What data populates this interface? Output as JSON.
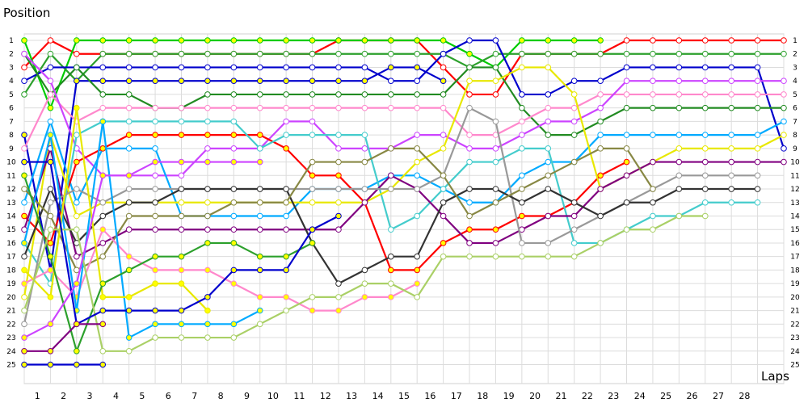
{
  "chart_data": {
    "type": "line",
    "title": "",
    "ylabel": "Position",
    "xlabel": "Laps",
    "x": [
      0,
      1,
      2,
      3,
      4,
      5,
      6,
      7,
      8,
      9,
      10,
      11,
      12,
      13,
      14,
      15,
      16,
      17,
      18,
      19,
      20,
      21,
      22,
      23,
      24,
      25,
      26,
      27,
      28,
      29
    ],
    "x_tick_labels": [
      "1",
      "2",
      "3",
      "4",
      "5",
      "6",
      "7",
      "8",
      "9",
      "10",
      "11",
      "12",
      "13",
      "14",
      "15",
      "16",
      "17",
      "18",
      "19",
      "20",
      "21",
      "22",
      "23",
      "24",
      "25",
      "26",
      "27",
      "28"
    ],
    "y_tick_labels": [
      "1",
      "2",
      "3",
      "4",
      "5",
      "6",
      "7",
      "8",
      "9",
      "10",
      "11",
      "12",
      "13",
      "14",
      "15",
      "16",
      "17",
      "18",
      "19",
      "20",
      "21",
      "22",
      "23",
      "24",
      "25"
    ],
    "ylim": [
      1,
      25
    ],
    "y_inverted": true,
    "grid": true,
    "series": [
      {
        "color": "#ff0000",
        "marker_fill": "#ffffff",
        "values": [
          3,
          1,
          2,
          2,
          2,
          2,
          2,
          2,
          2,
          2,
          2,
          2,
          1,
          1,
          1,
          1,
          3,
          5,
          5,
          2,
          2,
          2,
          2,
          1,
          1,
          1,
          1,
          1,
          1,
          1
        ]
      },
      {
        "color": "#00cc00",
        "marker_fill": "#ffff00",
        "values": [
          1,
          6,
          1,
          1,
          1,
          1,
          1,
          1,
          1,
          1,
          1,
          1,
          1,
          1,
          1,
          1,
          1,
          2,
          3,
          1,
          1,
          1,
          1,
          null,
          null,
          null,
          null,
          null,
          null,
          null
        ]
      },
      {
        "color": "#2ca02c",
        "marker_fill": "#ffffff",
        "values": [
          5,
          2,
          4,
          2,
          2,
          2,
          2,
          2,
          2,
          2,
          2,
          2,
          2,
          2,
          2,
          2,
          2,
          3,
          2,
          2,
          2,
          2,
          2,
          2,
          2,
          2,
          2,
          2,
          2,
          2
        ]
      },
      {
        "color": "#0000cc",
        "marker_fill": "#ffffff",
        "values": [
          4,
          3,
          3,
          3,
          3,
          3,
          3,
          3,
          3,
          3,
          3,
          3,
          3,
          3,
          4,
          4,
          2,
          1,
          1,
          5,
          5,
          4,
          4,
          3,
          3,
          3,
          3,
          3,
          3,
          9
        ]
      },
      {
        "color": "#0000cc",
        "marker_fill": "#ffff00",
        "values": [
          8,
          18,
          4,
          4,
          4,
          4,
          4,
          4,
          4,
          4,
          4,
          4,
          4,
          4,
          3,
          3,
          4,
          null,
          null,
          null,
          null,
          null,
          null,
          null,
          null,
          null,
          null,
          null,
          null,
          null
        ]
      },
      {
        "color": "#228b22",
        "marker_fill": "#ffffff",
        "values": [
          2,
          5,
          3,
          5,
          5,
          6,
          6,
          5,
          5,
          5,
          5,
          5,
          5,
          5,
          5,
          5,
          5,
          3,
          3,
          6,
          8,
          8,
          7,
          6,
          6,
          6,
          6,
          6,
          6,
          6
        ]
      },
      {
        "color": "#ff88cc",
        "marker_fill": "#ffffff",
        "values": [
          9,
          5,
          7,
          6,
          6,
          6,
          6,
          6,
          6,
          6,
          6,
          6,
          6,
          6,
          6,
          6,
          6,
          8,
          8,
          7,
          6,
          6,
          5,
          5,
          5,
          5,
          5,
          5,
          5,
          5
        ]
      },
      {
        "color": "#cc44ff",
        "marker_fill": "#ffffff",
        "values": [
          2,
          4,
          9,
          11,
          11,
          11,
          11,
          9,
          9,
          9,
          7,
          7,
          9,
          9,
          9,
          8,
          8,
          9,
          9,
          8,
          7,
          7,
          6,
          4,
          4,
          4,
          4,
          4,
          4,
          4
        ]
      },
      {
        "color": "#00aaff",
        "marker_fill": "#ffffff",
        "values": [
          13,
          7,
          13,
          9,
          9,
          9,
          14,
          14,
          14,
          14,
          14,
          12,
          12,
          12,
          11,
          11,
          12,
          13,
          13,
          11,
          10,
          10,
          8,
          8,
          8,
          8,
          8,
          8,
          8,
          7
        ]
      },
      {
        "color": "#ff0000",
        "marker_fill": "#ffff00",
        "values": [
          14,
          16,
          10,
          9,
          8,
          8,
          8,
          8,
          8,
          8,
          9,
          11,
          11,
          13,
          18,
          18,
          16,
          15,
          15,
          14,
          14,
          13,
          11,
          10,
          null,
          null,
          null,
          null,
          null,
          null
        ]
      },
      {
        "color": "#44cccc",
        "marker_fill": "#ffffff",
        "values": [
          16,
          19,
          8,
          7,
          7,
          7,
          7,
          7,
          7,
          9,
          8,
          8,
          8,
          8,
          15,
          14,
          12,
          10,
          10,
          9,
          9,
          16,
          16,
          15,
          14,
          14,
          13,
          13,
          13,
          null
        ]
      },
      {
        "color": "#e8e800",
        "marker_fill": "#ffffff",
        "values": [
          20,
          8,
          14,
          13,
          13,
          13,
          13,
          13,
          13,
          13,
          13,
          13,
          13,
          13,
          12,
          10,
          9,
          4,
          4,
          3,
          3,
          5,
          12,
          11,
          10,
          9,
          9,
          9,
          9,
          8
        ]
      },
      {
        "color": "#800080",
        "marker_fill": "#ffffff",
        "values": [
          15,
          9,
          17,
          16,
          15,
          15,
          15,
          15,
          15,
          15,
          15,
          15,
          15,
          13,
          11,
          12,
          14,
          16,
          16,
          15,
          14,
          14,
          12,
          11,
          10,
          10,
          10,
          10,
          10,
          10
        ]
      },
      {
        "color": "#999999",
        "marker_fill": "#ffffff",
        "values": [
          22,
          13,
          12,
          13,
          12,
          12,
          12,
          12,
          12,
          12,
          12,
          12,
          12,
          12,
          12,
          12,
          11,
          6,
          7,
          16,
          16,
          15,
          14,
          13,
          12,
          11,
          11,
          11,
          11,
          null
        ]
      },
      {
        "color": "#333333",
        "marker_fill": "#ffffff",
        "values": [
          17,
          12,
          16,
          14,
          13,
          13,
          12,
          12,
          12,
          12,
          12,
          16,
          19,
          18,
          17,
          17,
          13,
          12,
          12,
          13,
          12,
          13,
          14,
          13,
          13,
          12,
          12,
          12,
          12,
          null
        ]
      },
      {
        "color": "#888844",
        "marker_fill": "#ffffff",
        "values": [
          12,
          14,
          18,
          17,
          14,
          14,
          14,
          14,
          13,
          13,
          13,
          10,
          10,
          10,
          9,
          9,
          11,
          14,
          13,
          12,
          11,
          10,
          9,
          9,
          12,
          null,
          null,
          null,
          null,
          null
        ]
      },
      {
        "color": "#ff88cc",
        "marker_fill": "#ffff00",
        "values": [
          19,
          18,
          20,
          15,
          17,
          18,
          18,
          18,
          19,
          20,
          20,
          21,
          21,
          20,
          20,
          19,
          null,
          null,
          null,
          null,
          null,
          null,
          null,
          null,
          null,
          null,
          null,
          null,
          null,
          null
        ]
      },
      {
        "color": "#00aaff",
        "marker_fill": "#ffff00",
        "values": [
          16,
          8,
          21,
          7,
          23,
          22,
          22,
          22,
          22,
          21,
          null,
          null,
          null,
          null,
          null,
          null,
          null,
          null,
          null,
          null,
          null,
          null,
          null,
          null,
          null,
          null,
          null,
          null,
          null,
          null
        ]
      },
      {
        "color": "#e8e800",
        "marker_fill": "#ffff00",
        "values": [
          18,
          20,
          6,
          20,
          20,
          19,
          19,
          21,
          null,
          null,
          null,
          null,
          null,
          null,
          null,
          null,
          null,
          null,
          null,
          null,
          null,
          null,
          null,
          null,
          null,
          null,
          null,
          null,
          null,
          null
        ]
      },
      {
        "color": "#2ca02c",
        "marker_fill": "#ffff00",
        "values": [
          11,
          17,
          24,
          19,
          18,
          17,
          17,
          16,
          16,
          17,
          17,
          16,
          null,
          null,
          null,
          null,
          null,
          null,
          null,
          null,
          null,
          null,
          null,
          null,
          null,
          null,
          null,
          null,
          null,
          null
        ]
      },
      {
        "color": "#aad066",
        "marker_fill": "#ffffff",
        "values": [
          21,
          15,
          15,
          24,
          24,
          23,
          23,
          23,
          23,
          22,
          21,
          20,
          20,
          19,
          19,
          20,
          17,
          17,
          17,
          17,
          17,
          17,
          16,
          15,
          15,
          14,
          14,
          null,
          null,
          null
        ]
      },
      {
        "color": "#0000cc",
        "marker_fill": "#ffff00",
        "values": [
          10,
          10,
          22,
          21,
          21,
          21,
          21,
          20,
          18,
          18,
          18,
          15,
          14,
          null,
          null,
          null,
          null,
          null,
          null,
          null,
          null,
          null,
          null,
          null,
          null,
          null,
          null,
          null,
          null,
          null
        ]
      },
      {
        "color": "#cc44ff",
        "marker_fill": "#ffff00",
        "values": [
          23,
          22,
          19,
          11,
          11,
          10,
          10,
          10,
          10,
          10,
          null,
          null,
          null,
          null,
          null,
          null,
          null,
          null,
          null,
          null,
          null,
          null,
          null,
          null,
          null,
          null,
          null,
          null,
          null,
          null
        ]
      },
      {
        "color": "#800080",
        "marker_fill": "#ffff00",
        "values": [
          24,
          24,
          22,
          22,
          null,
          null,
          null,
          null,
          null,
          null,
          null,
          null,
          null,
          null,
          null,
          null,
          null,
          null,
          null,
          null,
          null,
          null,
          null,
          null,
          null,
          null,
          null,
          null,
          null,
          null
        ]
      },
      {
        "color": "#0000cc",
        "marker_fill": "#ffff00",
        "values": [
          25,
          25,
          25,
          25,
          null,
          null,
          null,
          null,
          null,
          null,
          null,
          null,
          null,
          null,
          null,
          null,
          null,
          null,
          null,
          null,
          null,
          null,
          null,
          null,
          null,
          null,
          null,
          null,
          null,
          null
        ]
      }
    ]
  }
}
